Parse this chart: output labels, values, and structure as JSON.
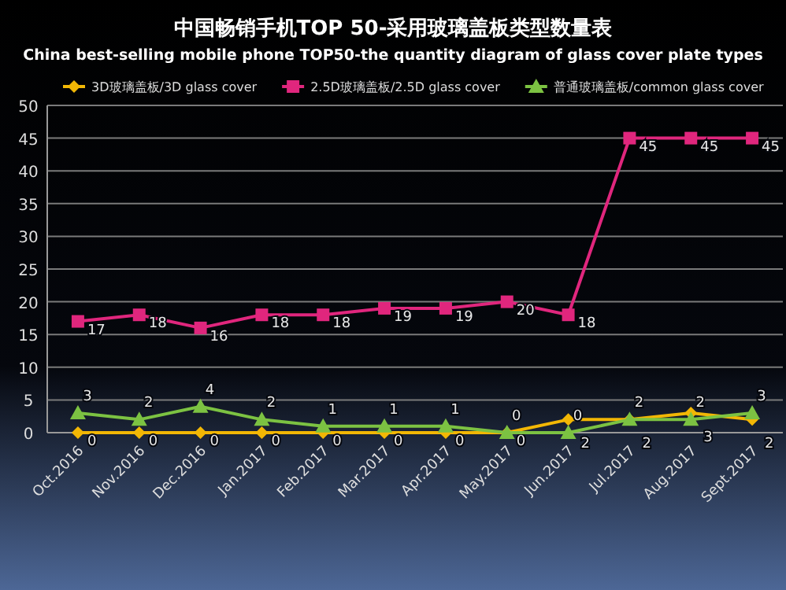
{
  "chart_data": {
    "type": "line",
    "title": "中国畅销手机TOP 50-采用玻璃盖板类型数量表",
    "subtitle": "China best-selling mobile phone TOP50-the quantity diagram of glass cover plate types",
    "categories": [
      "Oct.2016",
      "Nov.2016",
      "Dec.2016",
      "Jan.2017",
      "Feb.2017",
      "Mar.2017",
      "Apr.2017",
      "May.2017",
      "Jun.2017",
      "Jul.2017",
      "Aug.2017",
      "Sept.2017"
    ],
    "series": [
      {
        "name": "3D玻璃盖板/3D glass cover",
        "color": "#f2b705",
        "marker": "diamond",
        "values": [
          0,
          0,
          0,
          0,
          0,
          0,
          0,
          0,
          2,
          2,
          3,
          2
        ]
      },
      {
        "name": "2.5D玻璃盖板/2.5D glass cover",
        "color": "#e0267d",
        "marker": "square",
        "values": [
          17,
          18,
          16,
          18,
          18,
          19,
          19,
          20,
          18,
          45,
          45,
          45
        ]
      },
      {
        "name": "普通玻璃盖板/common glass cover",
        "color": "#7cc242",
        "marker": "triangle",
        "values": [
          3,
          2,
          4,
          2,
          1,
          1,
          1,
          0,
          0,
          2,
          2,
          3
        ]
      }
    ],
    "ylim": [
      0,
      50
    ],
    "yticks": [
      0,
      5,
      10,
      15,
      20,
      25,
      30,
      35,
      40,
      45,
      50
    ],
    "grid": "y",
    "legend": "top",
    "data_labels": true,
    "line_style": "solid"
  }
}
